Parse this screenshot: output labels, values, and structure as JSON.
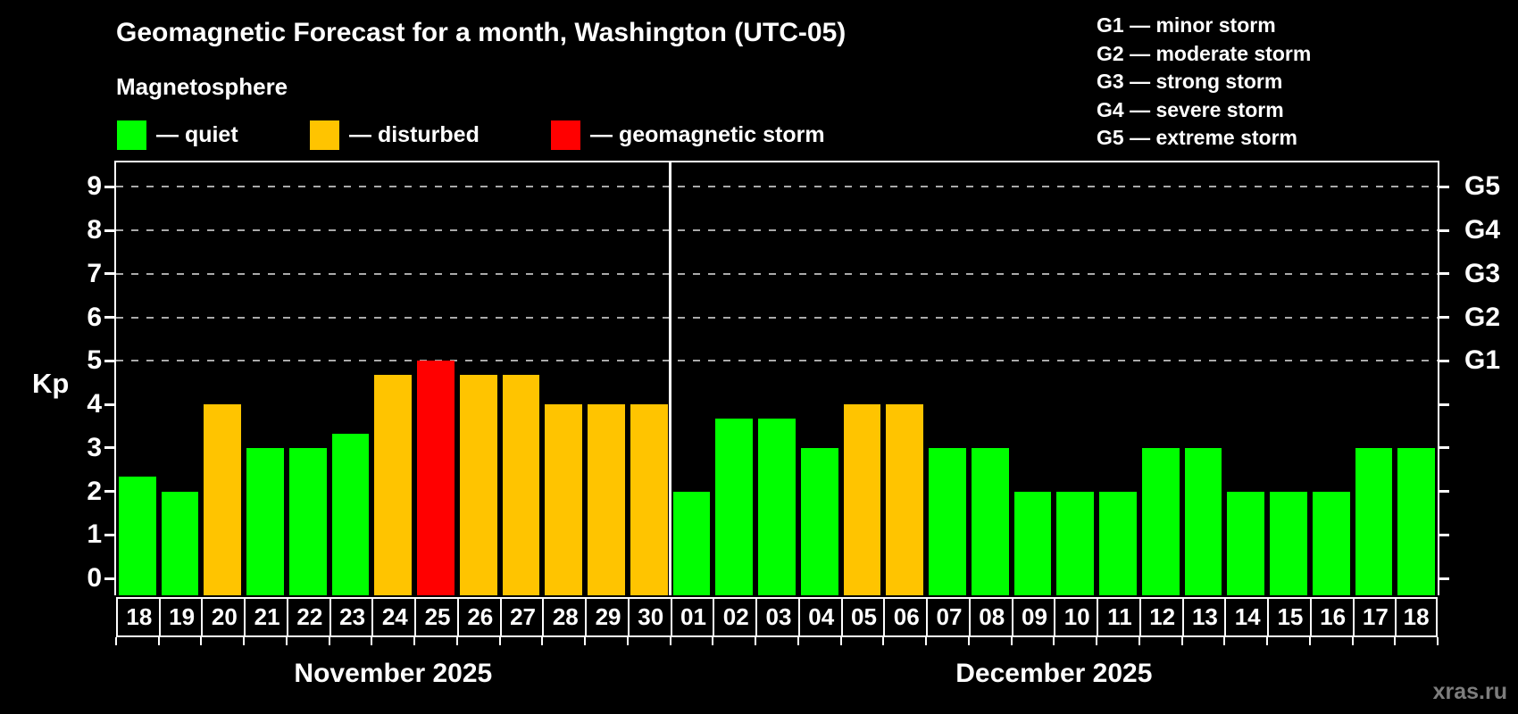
{
  "title": "Geomagnetic Forecast for a month, Washington (UTC-05)",
  "subtitle": "Magnetosphere",
  "status_colors": {
    "quiet": "#00ff00",
    "disturbed": "#ffc400",
    "storm": "#ff0000"
  },
  "legend": [
    {
      "status": "quiet",
      "label": "— quiet"
    },
    {
      "status": "disturbed",
      "label": "— disturbed"
    },
    {
      "status": "storm",
      "label": "— geomagnetic storm"
    }
  ],
  "g_legend": [
    "G1 — minor storm",
    "G2 — moderate storm",
    "G3 — strong storm",
    "G4 — severe storm",
    "G5 — extreme storm"
  ],
  "watermark": "xras.ru",
  "chart_data": {
    "type": "bar",
    "title": "Geomagnetic Forecast for a month, Washington (UTC-05)",
    "ylabel": "Kp",
    "ylim": [
      0,
      9
    ],
    "yticks": [
      0,
      1,
      2,
      3,
      4,
      5,
      6,
      7,
      8,
      9
    ],
    "gridlines_at": [
      5,
      6,
      7,
      8,
      9
    ],
    "grid_style": "dashed",
    "legend_position": "top",
    "right_axis": [
      {
        "kp": 5,
        "label": "G1"
      },
      {
        "kp": 6,
        "label": "G2"
      },
      {
        "kp": 7,
        "label": "G3"
      },
      {
        "kp": 8,
        "label": "G4"
      },
      {
        "kp": 9,
        "label": "G5"
      }
    ],
    "months": [
      {
        "label": "November 2025",
        "days": [
          {
            "date": "18",
            "kp": 2.33,
            "status": "quiet"
          },
          {
            "date": "19",
            "kp": 2.0,
            "status": "quiet"
          },
          {
            "date": "20",
            "kp": 4.0,
            "status": "disturbed"
          },
          {
            "date": "21",
            "kp": 3.0,
            "status": "quiet"
          },
          {
            "date": "22",
            "kp": 3.0,
            "status": "quiet"
          },
          {
            "date": "23",
            "kp": 3.33,
            "status": "quiet"
          },
          {
            "date": "24",
            "kp": 4.67,
            "status": "disturbed"
          },
          {
            "date": "25",
            "kp": 5.0,
            "status": "storm"
          },
          {
            "date": "26",
            "kp": 4.67,
            "status": "disturbed"
          },
          {
            "date": "27",
            "kp": 4.67,
            "status": "disturbed"
          },
          {
            "date": "28",
            "kp": 4.0,
            "status": "disturbed"
          },
          {
            "date": "29",
            "kp": 4.0,
            "status": "disturbed"
          },
          {
            "date": "30",
            "kp": 4.0,
            "status": "disturbed"
          }
        ]
      },
      {
        "label": "December 2025",
        "days": [
          {
            "date": "01",
            "kp": 2.0,
            "status": "quiet"
          },
          {
            "date": "02",
            "kp": 3.67,
            "status": "quiet"
          },
          {
            "date": "03",
            "kp": 3.67,
            "status": "quiet"
          },
          {
            "date": "04",
            "kp": 3.0,
            "status": "quiet"
          },
          {
            "date": "05",
            "kp": 4.0,
            "status": "disturbed"
          },
          {
            "date": "06",
            "kp": 4.0,
            "status": "disturbed"
          },
          {
            "date": "07",
            "kp": 3.0,
            "status": "quiet"
          },
          {
            "date": "08",
            "kp": 3.0,
            "status": "quiet"
          },
          {
            "date": "09",
            "kp": 2.0,
            "status": "quiet"
          },
          {
            "date": "10",
            "kp": 2.0,
            "status": "quiet"
          },
          {
            "date": "11",
            "kp": 2.0,
            "status": "quiet"
          },
          {
            "date": "12",
            "kp": 3.0,
            "status": "quiet"
          },
          {
            "date": "13",
            "kp": 3.0,
            "status": "quiet"
          },
          {
            "date": "14",
            "kp": 2.0,
            "status": "quiet"
          },
          {
            "date": "15",
            "kp": 2.0,
            "status": "quiet"
          },
          {
            "date": "16",
            "kp": 2.0,
            "status": "quiet"
          },
          {
            "date": "17",
            "kp": 3.0,
            "status": "quiet"
          },
          {
            "date": "18",
            "kp": 3.0,
            "status": "quiet"
          }
        ]
      }
    ]
  }
}
